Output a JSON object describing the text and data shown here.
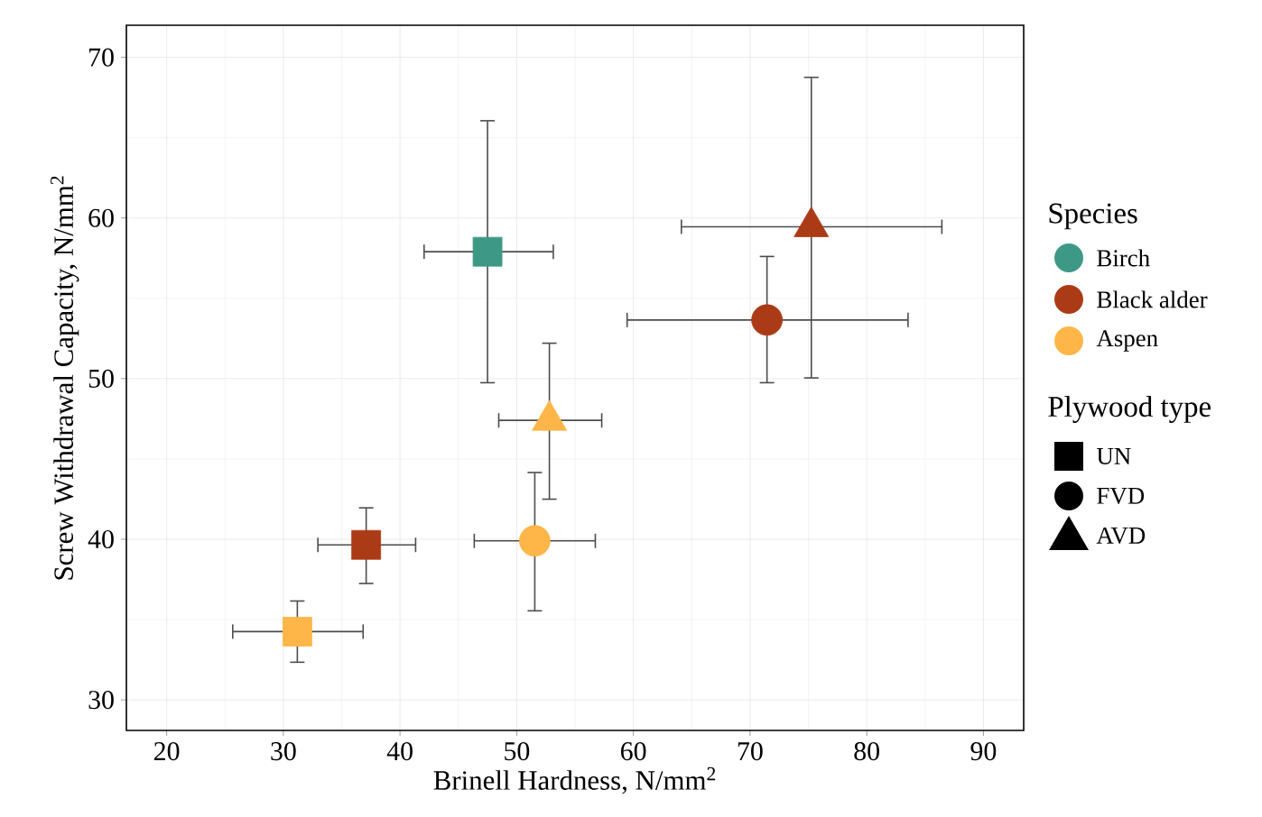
{
  "chart_data": {
    "type": "scatter",
    "xlabel": "Brinell Hardness, N/mm$^{2}$",
    "ylabel": "Screw Withdrawal Capacity, N/mm$^{2}$",
    "legend_title": [
      "Species",
      "Plywood type"
    ],
    "series": [
      {
        "name": "Birch",
        "color": "#3d9986",
        "marker": [
          "square"
        ],
        "x": [
          47.5
        ],
        "values": [
          57.9
        ],
        "xerrors": [
          [
            42.0,
            53.2
          ]
        ],
        "errors": [
          [
            49.7,
            66.1
          ]
        ]
      },
      {
        "name": "Black alder",
        "color": "#ab3b17",
        "marker": [
          "square",
          "circle",
          "triangle"
        ],
        "x": [
          37.1,
          71.45,
          75.25
        ],
        "values": [
          39.65,
          53.65,
          59.45
        ],
        "xerrors": [
          [
            32.9,
            41.4
          ],
          [
            59.4,
            83.6
          ],
          [
            64.05,
            86.5
          ]
        ],
        "errors": [
          [
            37.2,
            42.0
          ],
          [
            49.7,
            57.65
          ],
          [
            50.0,
            68.8
          ]
        ]
      },
      {
        "name": "Aspen",
        "color": "#fdb647",
        "marker": [
          "square",
          "circle",
          "triangle"
        ],
        "x": [
          31.2,
          51.55,
          52.8
        ],
        "values": [
          34.25,
          39.9,
          47.4
        ],
        "xerrors": [
          [
            25.6,
            36.9
          ],
          [
            46.3,
            56.8
          ],
          [
            48.4,
            57.35
          ]
        ],
        "errors": [
          [
            32.3,
            36.2
          ],
          [
            35.5,
            44.2
          ],
          [
            42.45,
            52.25
          ]
        ]
      },
      {
        "name": "UN",
        "color": "#000000",
        "marker": "square"
      },
      {
        "name": "FVD",
        "color": "#000000",
        "marker": "circle"
      },
      {
        "name": "AVD",
        "color": "#000000",
        "marker": "triangle"
      }
    ],
    "xlim": [
      16.55,
      93.45
    ],
    "ylim": [
      28.1,
      72.0
    ],
    "xticks": [
      20,
      30,
      40,
      50,
      60,
      70,
      80,
      90
    ],
    "yticks": [
      30,
      40,
      50,
      60,
      70
    ],
    "grid": true,
    "legend": "right"
  }
}
